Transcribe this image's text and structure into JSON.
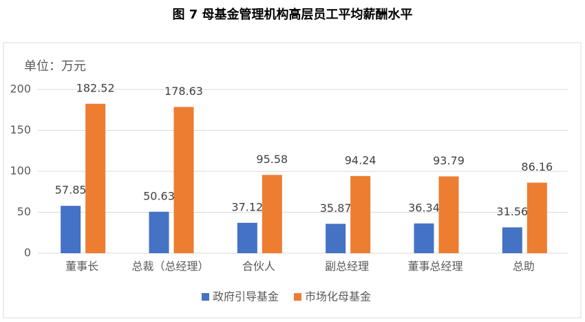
{
  "chart_data": {
    "type": "bar",
    "title": "图 7  母基金管理机构高层员工平均薪酬水平",
    "unit_label": "单位：万元",
    "categories": [
      "董事长",
      "总裁（总经理）",
      "合伙人",
      "副总经理",
      "董事总经理",
      "总助"
    ],
    "series": [
      {
        "name": "政府引导基金",
        "color": "#4472c4",
        "values": [
          57.85,
          50.63,
          37.12,
          35.87,
          36.34,
          31.56
        ]
      },
      {
        "name": "市场化母基金",
        "color": "#ed7d31",
        "values": [
          182.52,
          178.63,
          95.58,
          94.24,
          93.79,
          86.16
        ]
      }
    ],
    "ylim": [
      0,
      200
    ],
    "yticks": [
      0,
      50,
      100,
      150,
      200
    ],
    "grid": true,
    "legend": "bottom"
  }
}
